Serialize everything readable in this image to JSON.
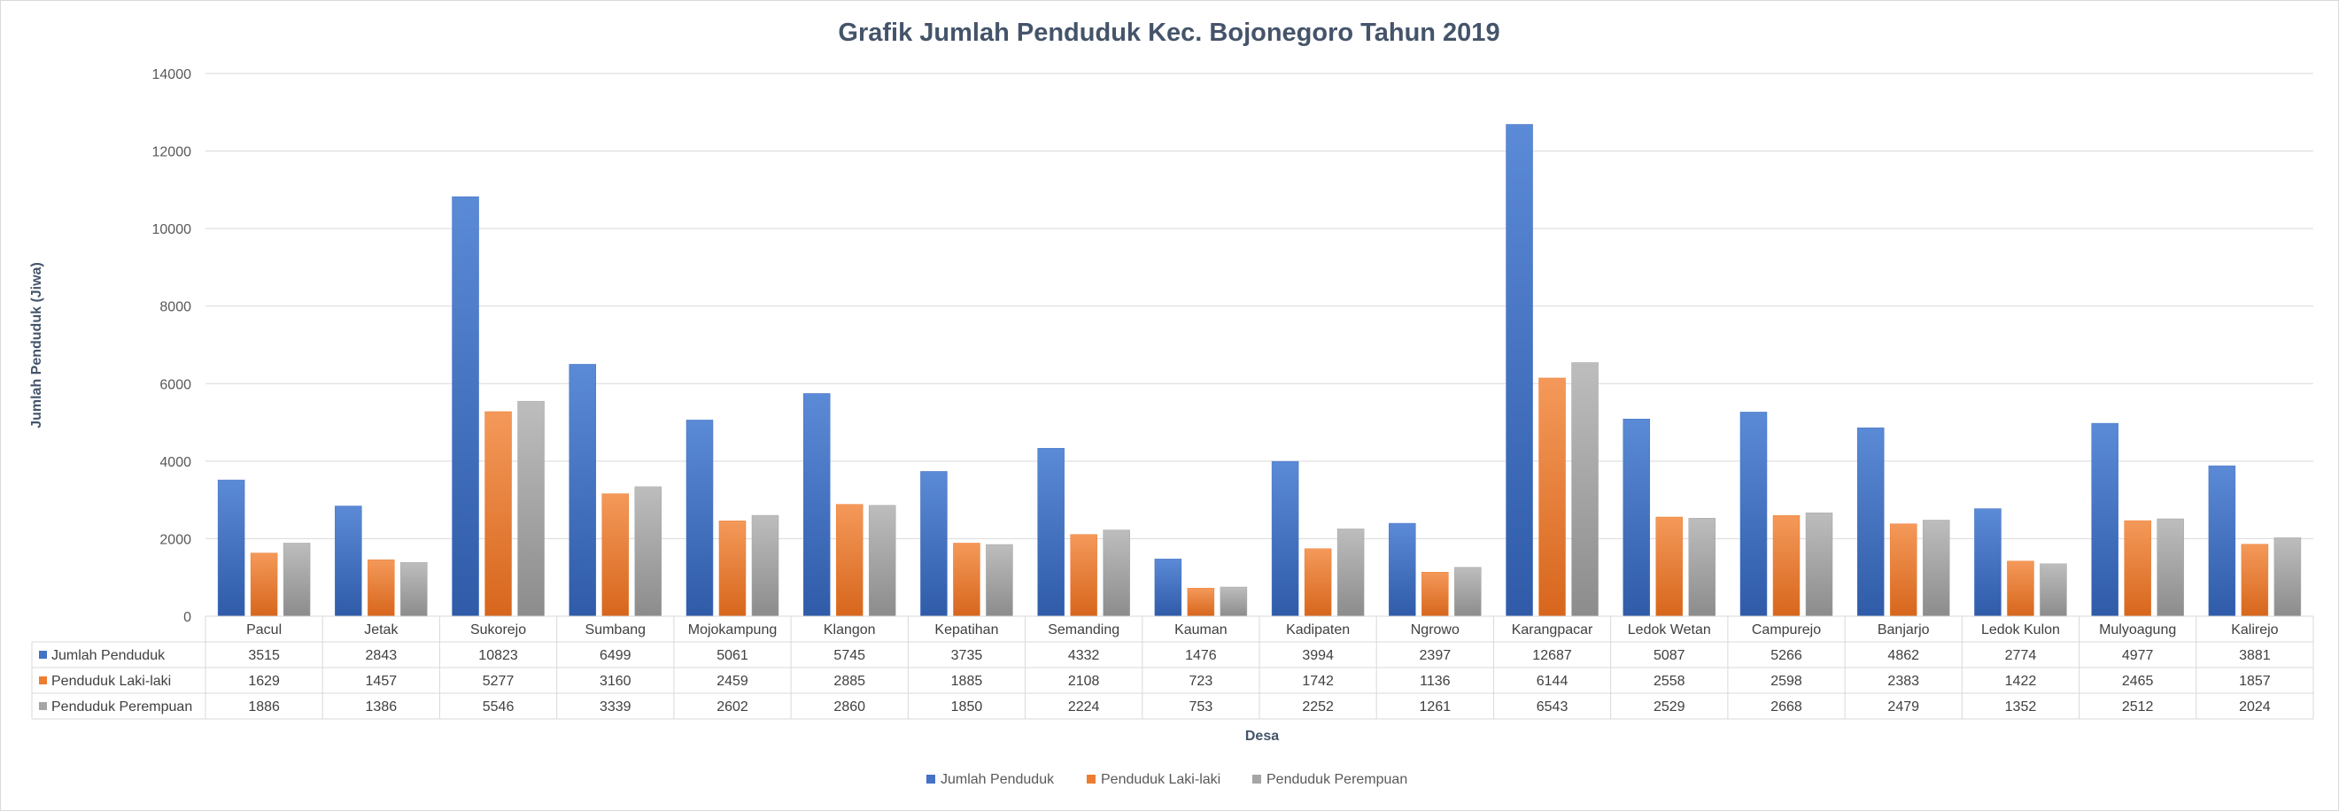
{
  "colors": {
    "series": [
      "#4472c4",
      "#ed7d31",
      "#a5a5a5"
    ],
    "grid": "#d9d9d9",
    "text": "#595959",
    "title": "#44546a"
  },
  "chart_data": {
    "type": "bar",
    "title": "Grafik Jumlah Penduduk Kec. Bojonegoro Tahun 2019",
    "xlabel": "Desa",
    "ylabel": "Jumlah Penduduk (Jiwa)",
    "ylim": [
      0,
      14000
    ],
    "yticks": [
      0,
      2000,
      4000,
      6000,
      8000,
      10000,
      12000,
      14000
    ],
    "grid": true,
    "legend_position": "bottom",
    "data_table": true,
    "categories": [
      "Pacul",
      "Jetak",
      "Sukorejo",
      "Sumbang",
      "Mojokampung",
      "Klangon",
      "Kepatihan",
      "Semanding",
      "Kauman",
      "Kadipaten",
      "Ngrowo",
      "Karangpacar",
      "Ledok  Wetan",
      "Campurejo",
      "Banjarjo",
      "Ledok Kulon",
      "Mulyoagung",
      "Kalirejo"
    ],
    "series": [
      {
        "name": "Jumlah Penduduk",
        "values": [
          3515,
          2843,
          10823,
          6499,
          5061,
          5745,
          3735,
          4332,
          1476,
          3994,
          2397,
          12687,
          5087,
          5266,
          4862,
          2774,
          4977,
          3881
        ]
      },
      {
        "name": "Penduduk Laki-laki",
        "values": [
          1629,
          1457,
          5277,
          3160,
          2459,
          2885,
          1885,
          2108,
          723,
          1742,
          1136,
          6144,
          2558,
          2598,
          2383,
          1422,
          2465,
          1857
        ]
      },
      {
        "name": "Penduduk Perempuan",
        "values": [
          1886,
          1386,
          5546,
          3339,
          2602,
          2860,
          1850,
          2224,
          753,
          2252,
          1261,
          6543,
          2529,
          2668,
          2479,
          1352,
          2512,
          2024
        ]
      }
    ]
  }
}
